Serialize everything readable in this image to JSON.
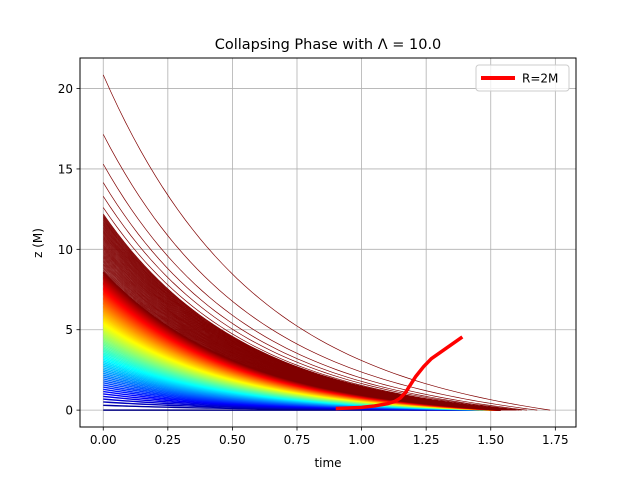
{
  "chart_data": {
    "type": "line",
    "title": "Collapsing Phase with Λ = 10.0",
    "xlabel": "time",
    "ylabel": "z (M)",
    "xlim": [
      -0.09,
      1.83
    ],
    "ylim": [
      -1.05,
      21.9
    ],
    "xticks": [
      0.0,
      0.25,
      0.5,
      0.75,
      1.0,
      1.25,
      1.5,
      1.75
    ],
    "xtick_labels": [
      "0.00",
      "0.25",
      "0.50",
      "0.75",
      "1.00",
      "1.25",
      "1.50",
      "1.75"
    ],
    "yticks": [
      0,
      5,
      10,
      15,
      20
    ],
    "ytick_labels": [
      "0",
      "5",
      "10",
      "15",
      "20"
    ],
    "grid": true,
    "legend_position": "upper right",
    "colormap": "jet",
    "shell_trajectories": {
      "description_from_figure": "family of collapsing shell worldlines colored by jet colormap (blue at small initial z, dark red at large initial z)",
      "n_lines": 140,
      "initial_z_range": [
        0.0,
        20.85
      ],
      "outer_lines": [
        {
          "z0": 20.85,
          "t_end": 1.73
        },
        {
          "z0": 17.15,
          "t_end": 1.68
        },
        {
          "z0": 15.3,
          "t_end": 1.64
        },
        {
          "z0": 14.15,
          "t_end": 1.62
        },
        {
          "z0": 13.3,
          "t_end": 1.61
        },
        {
          "z0": 12.6,
          "t_end": 1.6
        }
      ],
      "inner_t_end": 1.5,
      "decay_rate": 3.0
    },
    "series": [
      {
        "name": "R=2M",
        "color": "#ff0000",
        "x": [
          0.9,
          0.95,
          1.0,
          1.05,
          1.1,
          1.13,
          1.15,
          1.17,
          1.19,
          1.21,
          1.24,
          1.27,
          1.31,
          1.35,
          1.39
        ],
        "y": [
          0.1,
          0.13,
          0.17,
          0.26,
          0.4,
          0.55,
          0.75,
          1.1,
          1.6,
          2.1,
          2.7,
          3.2,
          3.65,
          4.1,
          4.55
        ]
      }
    ],
    "legend_entries": [
      "R=2M"
    ]
  }
}
